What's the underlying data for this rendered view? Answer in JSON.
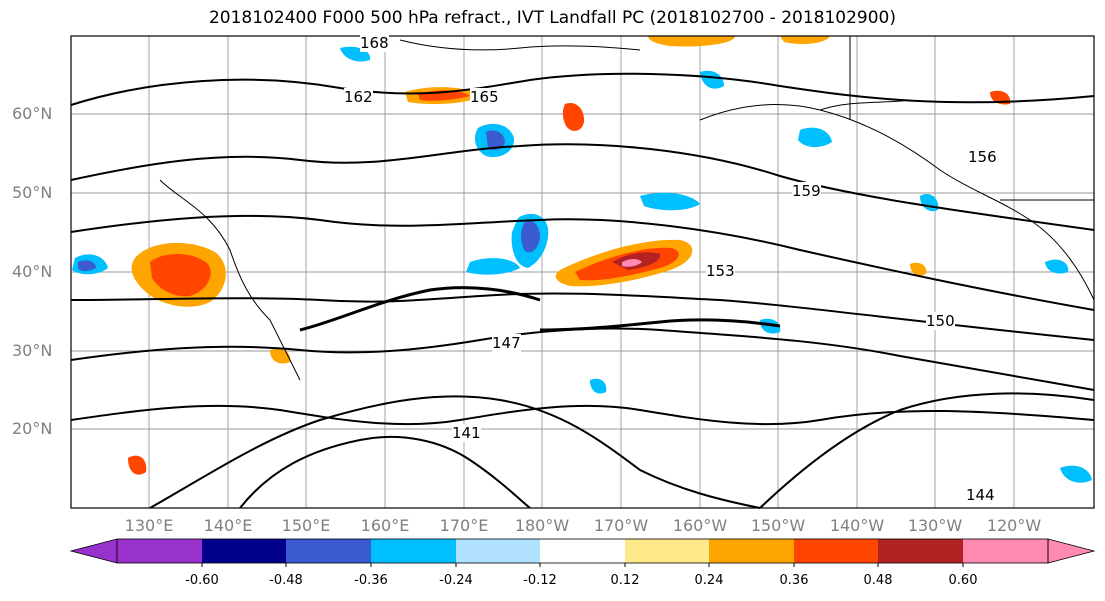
{
  "title": "2018102400 F000 500 hPa refract., IVT Landfall PC (2018102700 - 2018102900)",
  "lat_labels": [
    "60°N",
    "50°N",
    "40°N",
    "30°N",
    "20°N"
  ],
  "lon_labels": [
    "130°E",
    "140°E",
    "150°E",
    "160°E",
    "170°E",
    "180°W",
    "170°W",
    "160°W",
    "150°W",
    "140°W",
    "130°W",
    "120°W"
  ],
  "contour_labels": [
    "168",
    "165",
    "162",
    "159",
    "156",
    "153",
    "150",
    "147",
    "144",
    "141"
  ],
  "colorbar": {
    "ticks": [
      "-0.60",
      "-0.48",
      "-0.36",
      "-0.24",
      "-0.12",
      "0.12",
      "0.24",
      "0.36",
      "0.48",
      "0.60"
    ],
    "colors": [
      "#9932cc",
      "#00008b",
      "#3a5bd1",
      "#00bfff",
      "#b0e2ff",
      "#ffffff",
      "#ffe98a",
      "#ffa500",
      "#ff4500",
      "#b22222",
      "#ff8ab4"
    ]
  }
}
